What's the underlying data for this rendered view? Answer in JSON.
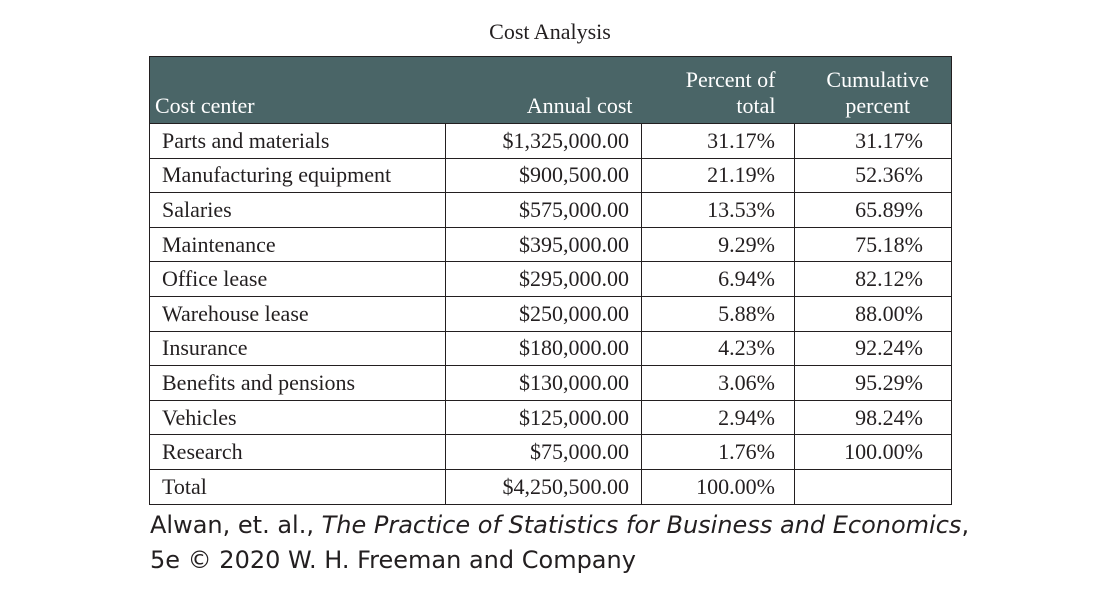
{
  "title": "Cost Analysis",
  "table": {
    "headers": [
      "Cost center",
      "Annual cost",
      "Percent of total",
      "Cumulative percent"
    ],
    "rows": [
      [
        "Parts and materials",
        "$1,325,000.00",
        "31.17%",
        "31.17%"
      ],
      [
        "Manufacturing equipment",
        "$900,500.00",
        "21.19%",
        "52.36%"
      ],
      [
        "Salaries",
        "$575,000.00",
        "13.53%",
        "65.89%"
      ],
      [
        "Maintenance",
        "$395,000.00",
        "9.29%",
        "75.18%"
      ],
      [
        "Office lease",
        "$295,000.00",
        "6.94%",
        "82.12%"
      ],
      [
        "Warehouse lease",
        "$250,000.00",
        "5.88%",
        "88.00%"
      ],
      [
        "Insurance",
        "$180,000.00",
        "4.23%",
        "92.24%"
      ],
      [
        "Benefits and pensions",
        "$130,000.00",
        "3.06%",
        "95.29%"
      ],
      [
        "Vehicles",
        "$125,000.00",
        "2.94%",
        "98.24%"
      ],
      [
        "Research",
        "$75,000.00",
        "1.76%",
        "100.00%"
      ],
      [
        "Total",
        "$4,250,500.00",
        "100.00%",
        ""
      ]
    ]
  },
  "credit": {
    "authors": "Alwan, et. al., ",
    "book": "The Practice of Statistics for Business and Economics",
    "comma": ",",
    "edition": "5e © 2020 W. H. Freeman and Company"
  }
}
